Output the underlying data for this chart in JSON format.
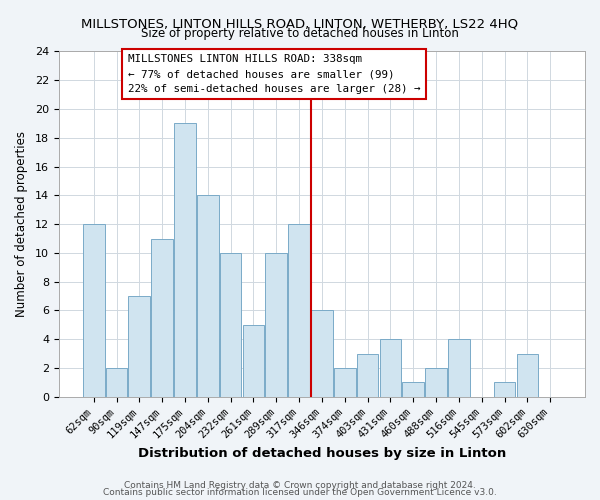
{
  "title": "MILLSTONES, LINTON HILLS ROAD, LINTON, WETHERBY, LS22 4HQ",
  "subtitle": "Size of property relative to detached houses in Linton",
  "xlabel": "Distribution of detached houses by size in Linton",
  "ylabel": "Number of detached properties",
  "bar_color": "#d0e4f0",
  "bar_edge_color": "#7aaac8",
  "categories": [
    "62sqm",
    "90sqm",
    "119sqm",
    "147sqm",
    "175sqm",
    "204sqm",
    "232sqm",
    "261sqm",
    "289sqm",
    "317sqm",
    "346sqm",
    "374sqm",
    "403sqm",
    "431sqm",
    "460sqm",
    "488sqm",
    "516sqm",
    "545sqm",
    "573sqm",
    "602sqm",
    "630sqm"
  ],
  "values": [
    12,
    2,
    7,
    11,
    19,
    14,
    10,
    5,
    10,
    12,
    6,
    2,
    3,
    4,
    1,
    2,
    4,
    0,
    1,
    3,
    0
  ],
  "ylim": [
    0,
    24
  ],
  "yticks": [
    0,
    2,
    4,
    6,
    8,
    10,
    12,
    14,
    16,
    18,
    20,
    22,
    24
  ],
  "vline_x": 10.0,
  "vline_color": "#cc0000",
  "annotation_title": "MILLSTONES LINTON HILLS ROAD: 338sqm",
  "annotation_line1": "← 77% of detached houses are smaller (99)",
  "annotation_line2": "22% of semi-detached houses are larger (28) →",
  "footer1": "Contains HM Land Registry data © Crown copyright and database right 2024.",
  "footer2": "Contains public sector information licensed under the Open Government Licence v3.0.",
  "background_color": "#f0f4f8",
  "plot_background": "#ffffff",
  "grid_color": "#d0d8e0"
}
